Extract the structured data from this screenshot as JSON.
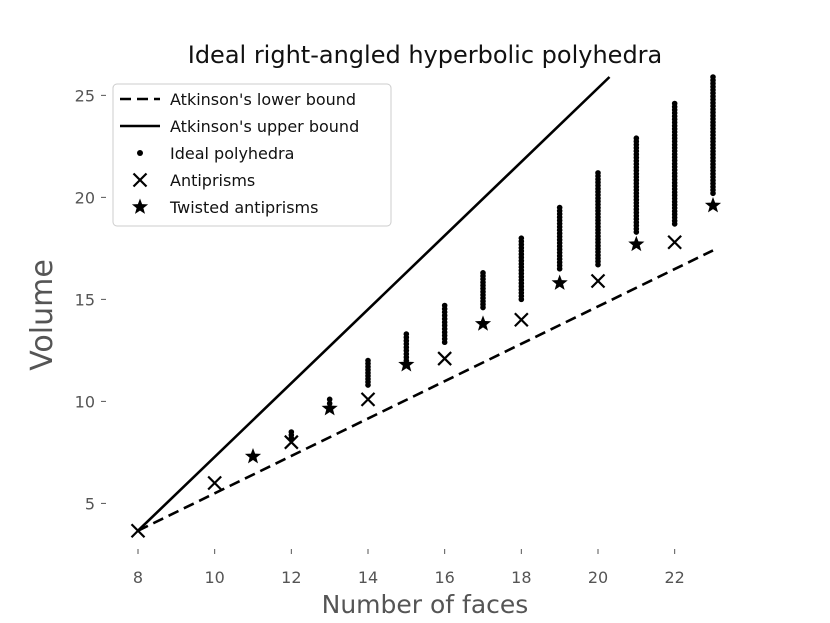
{
  "chart_data": {
    "type": "scatter",
    "title": "Ideal right-angled hyperbolic polyhedra",
    "xlabel": "Number of faces",
    "ylabel": "Volume",
    "xlim": [
      8,
      23
    ],
    "ylim": [
      3.5,
      25.9
    ],
    "xticks": [
      8,
      10,
      12,
      14,
      16,
      18,
      20,
      22
    ],
    "yticks": [
      5,
      10,
      15,
      20,
      25
    ],
    "grid": false,
    "legend_position": "top-left",
    "series": [
      {
        "name": "Atkinson's lower bound",
        "kind": "line",
        "style": "dashed",
        "color": "#000000",
        "x": [
          8,
          23
        ],
        "y": [
          3.66,
          17.4
        ]
      },
      {
        "name": "Atkinson's upper bound",
        "kind": "line",
        "style": "solid",
        "color": "#000000",
        "x": [
          8,
          20.3
        ],
        "y": [
          3.66,
          25.9
        ]
      },
      {
        "name": "Ideal polyhedra",
        "kind": "range-dots",
        "marker": "dot",
        "color": "#000000",
        "x": [
          12,
          13,
          14,
          15,
          16,
          17,
          18,
          19,
          20,
          21,
          22,
          23
        ],
        "ymin": [
          8.2,
          9.9,
          10.8,
          12.0,
          12.9,
          14.6,
          15.0,
          16.5,
          16.7,
          18.3,
          18.7,
          20.2
        ],
        "ymax": [
          8.5,
          10.1,
          12.0,
          13.3,
          14.7,
          16.3,
          18.0,
          19.5,
          21.2,
          22.9,
          24.6,
          25.9
        ]
      },
      {
        "name": "Antiprisms",
        "kind": "scatter",
        "marker": "x",
        "color": "#000000",
        "x": [
          8,
          10,
          12,
          14,
          16,
          18,
          20,
          22
        ],
        "y": [
          3.66,
          6.0,
          8.0,
          10.1,
          12.1,
          14.0,
          15.9,
          17.8
        ]
      },
      {
        "name": "Twisted antiprisms",
        "kind": "scatter",
        "marker": "star",
        "color": "#000000",
        "x": [
          11,
          13,
          15,
          17,
          19,
          21,
          23
        ],
        "y": [
          7.3,
          9.65,
          11.8,
          13.8,
          15.8,
          17.7,
          19.6
        ]
      }
    ]
  }
}
